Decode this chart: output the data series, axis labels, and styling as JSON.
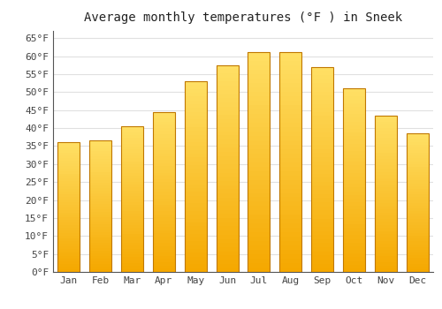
{
  "title": "Average monthly temperatures (°F ) in Sneek",
  "months": [
    "Jan",
    "Feb",
    "Mar",
    "Apr",
    "May",
    "Jun",
    "Jul",
    "Aug",
    "Sep",
    "Oct",
    "Nov",
    "Dec"
  ],
  "values": [
    36,
    36.5,
    40.5,
    44.5,
    53,
    57.5,
    61,
    61,
    57,
    51,
    43.5,
    38.5
  ],
  "bar_color_bottom": "#F5A800",
  "bar_color_top": "#FFE066",
  "bar_edge_color": "#C07800",
  "ylim": [
    0,
    67
  ],
  "yticks": [
    0,
    5,
    10,
    15,
    20,
    25,
    30,
    35,
    40,
    45,
    50,
    55,
    60,
    65
  ],
  "ytick_labels": [
    "0°F",
    "5°F",
    "10°F",
    "15°F",
    "20°F",
    "25°F",
    "30°F",
    "35°F",
    "40°F",
    "45°F",
    "50°F",
    "55°F",
    "60°F",
    "65°F"
  ],
  "background_color": "#ffffff",
  "grid_color": "#e0e0e0",
  "title_fontsize": 10,
  "tick_fontsize": 8,
  "font_family": "monospace"
}
